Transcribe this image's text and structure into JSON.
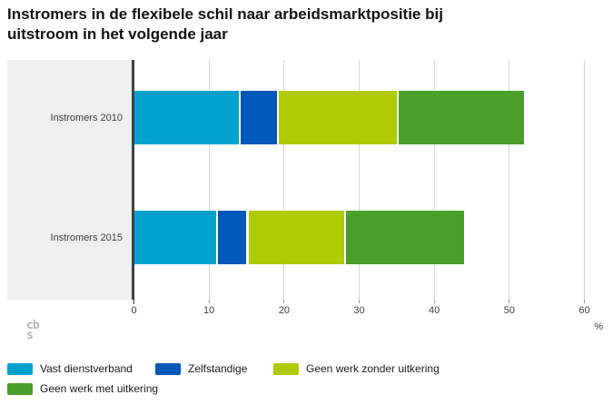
{
  "title_lines": [
    "Instromers in de flexibele schil naar arbeidsmarktpositie bij",
    "uitstroom in het volgende jaar"
  ],
  "logo": {
    "top": "cb",
    "bottom": "s"
  },
  "chart_data": {
    "type": "bar",
    "orientation": "horizontal",
    "stacked": true,
    "title": "Instromers in de flexibele schil naar arbeidsmarktpositie bij uitstroom in het volgende jaar",
    "categories": [
      "Instromers 2010",
      "Instromers 2015"
    ],
    "series": [
      {
        "name": "Vast dienstverband",
        "color": "#00a1cd",
        "values": [
          14,
          11
        ]
      },
      {
        "name": "Zelfstandige",
        "color": "#0058b8",
        "values": [
          5,
          4
        ]
      },
      {
        "name": "Geen werk zonder uitkering",
        "color": "#afcb05",
        "values": [
          16,
          13
        ]
      },
      {
        "name": "Geen werk met uitkering",
        "color": "#4a9e2a",
        "values": [
          17,
          16
        ]
      }
    ],
    "xlabel": "%",
    "ylabel": "",
    "xlim": [
      0,
      60
    ],
    "xticks": [
      0,
      10,
      20,
      30,
      40,
      50,
      60
    ],
    "grid": true,
    "legend_position": "bottom"
  }
}
